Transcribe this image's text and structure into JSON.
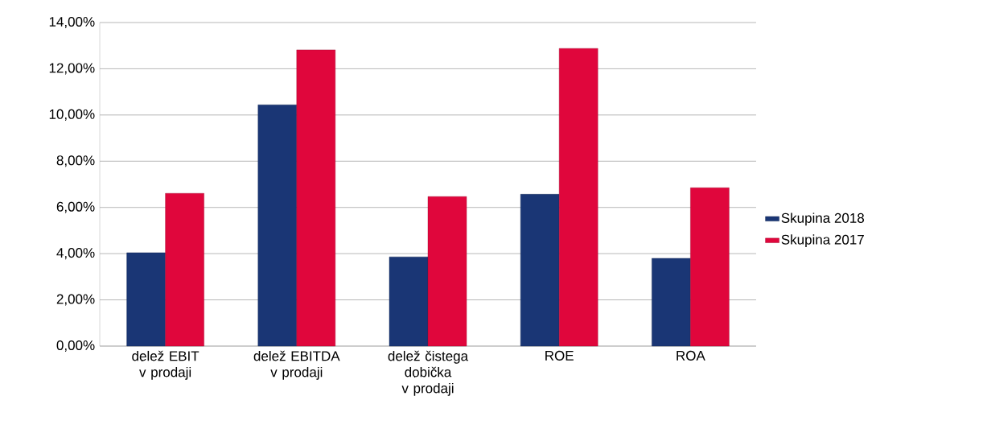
{
  "chart_data": {
    "type": "bar",
    "categories": [
      "delež EBIT v prodaji",
      "delež EBITDA v prodaji",
      "delež čistega dobička v prodaji",
      "ROE",
      "ROA"
    ],
    "series": [
      {
        "name": "Skupina 2018",
        "color": "#1a3675",
        "values": [
          4.04,
          10.44,
          3.86,
          6.57,
          3.8
        ]
      },
      {
        "name": "Skupina 2017",
        "color": "#e0063c",
        "values": [
          6.61,
          12.82,
          6.47,
          12.88,
          6.85
        ]
      }
    ],
    "ylim": [
      0,
      14
    ],
    "yticks": [
      {
        "value": 0,
        "label": "0,00%"
      },
      {
        "value": 2,
        "label": "2,00%"
      },
      {
        "value": 4,
        "label": "4,00%"
      },
      {
        "value": 6,
        "label": "6,00%"
      },
      {
        "value": 8,
        "label": "8,00%"
      },
      {
        "value": 10,
        "label": "10,00%"
      },
      {
        "value": 12,
        "label": "12,00%"
      },
      {
        "value": 14,
        "label": "14,00%"
      }
    ],
    "grid": "y",
    "legend": "right"
  }
}
